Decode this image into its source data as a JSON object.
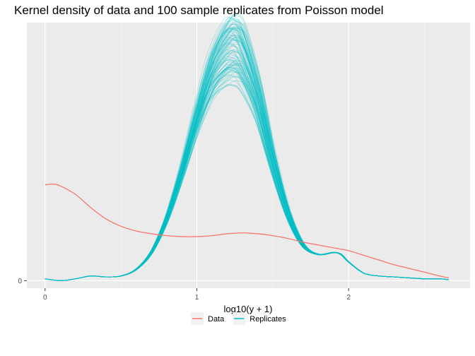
{
  "chart_data": {
    "type": "line",
    "title": "Kernel density of data and 100 sample replicates from Poisson model",
    "xlabel": "log10(y + 1)",
    "ylabel": "",
    "xlim": [
      -0.12,
      2.8
    ],
    "ylim": [
      -0.08,
      2.75
    ],
    "x_ticks": [
      0,
      1,
      2
    ],
    "x_minor": [
      0.5,
      1.5,
      2.5
    ],
    "y_ticks": [
      0
    ],
    "grid": true,
    "legend_position": "bottom",
    "replicate_count": 100,
    "series": [
      {
        "name": "Data",
        "color": "#F8766D",
        "x": [
          0.0,
          0.05,
          0.1,
          0.2,
          0.3,
          0.4,
          0.5,
          0.6,
          0.7,
          0.8,
          0.9,
          1.0,
          1.1,
          1.2,
          1.3,
          1.4,
          1.5,
          1.6,
          1.7,
          1.8,
          1.9,
          2.0,
          2.1,
          2.2,
          2.3,
          2.4,
          2.5,
          2.6,
          2.66
        ],
        "y": [
          1.02,
          1.03,
          1.01,
          0.92,
          0.78,
          0.66,
          0.58,
          0.53,
          0.5,
          0.48,
          0.47,
          0.47,
          0.48,
          0.5,
          0.51,
          0.5,
          0.48,
          0.45,
          0.41,
          0.38,
          0.35,
          0.32,
          0.27,
          0.22,
          0.17,
          0.13,
          0.09,
          0.05,
          0.03
        ]
      },
      {
        "name": "Replicates",
        "color": "#00BFC4",
        "x": [
          0.0,
          0.1,
          0.2,
          0.3,
          0.4,
          0.5,
          0.6,
          0.7,
          0.8,
          0.9,
          1.0,
          1.1,
          1.2,
          1.25,
          1.3,
          1.4,
          1.5,
          1.6,
          1.7,
          1.8,
          1.9,
          1.95,
          2.0,
          2.1,
          2.2,
          2.3,
          2.4,
          2.5,
          2.6,
          2.66
        ],
        "y": [
          0.02,
          0.0,
          0.02,
          0.05,
          0.04,
          0.05,
          0.12,
          0.3,
          0.65,
          1.15,
          1.72,
          2.2,
          2.45,
          2.48,
          2.4,
          1.95,
          1.28,
          0.72,
          0.38,
          0.28,
          0.3,
          0.28,
          0.2,
          0.08,
          0.05,
          0.04,
          0.03,
          0.02,
          0.02,
          0.01
        ]
      }
    ]
  }
}
